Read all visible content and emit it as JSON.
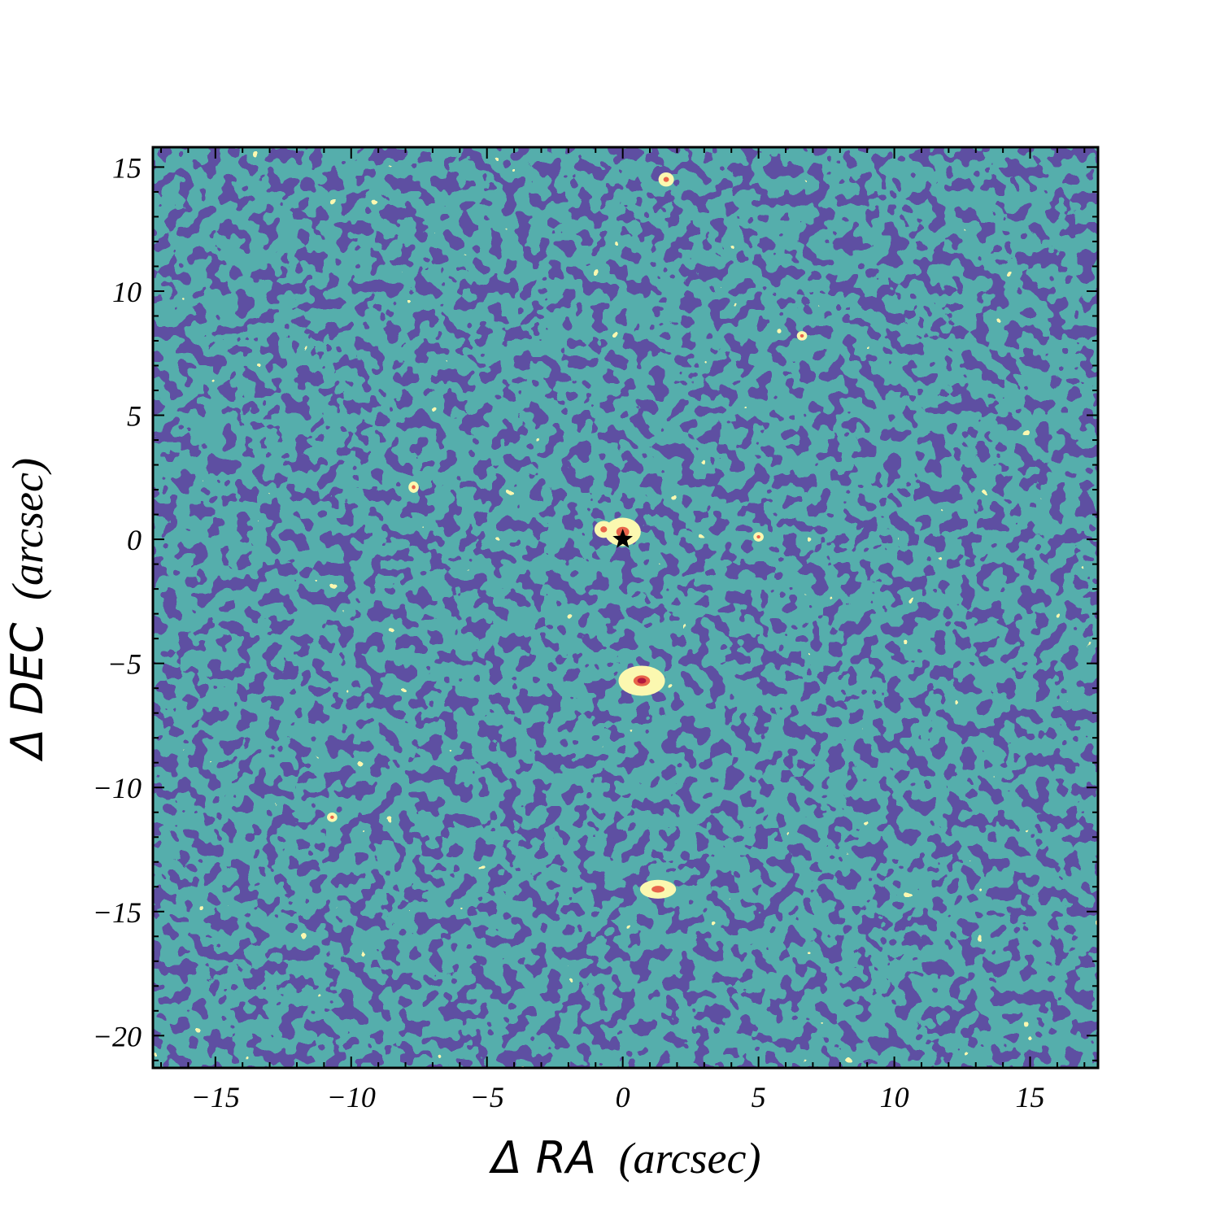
{
  "chart_data": {
    "type": "heatmap",
    "title": "",
    "xlabel": {
      "prefix": "Δ RA",
      "unit": "(arcsec)"
    },
    "ylabel": {
      "prefix": "Δ DEC",
      "unit": "(arcsec)"
    },
    "xlim": [
      -17.3,
      17.5
    ],
    "ylim": [
      -21.3,
      15.8
    ],
    "x_ticks": [
      -15,
      -10,
      -5,
      0,
      5,
      10,
      15
    ],
    "y_ticks": [
      15,
      10,
      5,
      0,
      -5,
      -10,
      -15,
      -20
    ],
    "x_tick_labels": [
      "−15",
      "−10",
      "−5",
      "0",
      "5",
      "10",
      "15"
    ],
    "y_tick_labels": [
      "15",
      "10",
      "5",
      "0",
      "−5",
      "−10",
      "−15",
      "−20"
    ],
    "minor_tick_step": 1,
    "grid": false,
    "colormap": "Spectral_r",
    "contour_level_colors": [
      "#5e4fa2",
      "#54aeac",
      "#fbf8b0",
      "#e8644b",
      "#b2183c"
    ],
    "sources": [
      {
        "x": 0.0,
        "y": 0.3,
        "level": 3,
        "rx": 0.35,
        "ry": 0.3
      },
      {
        "x": -0.7,
        "y": 0.4,
        "level": 3,
        "rx": 0.18,
        "ry": 0.18
      },
      {
        "x": 0.7,
        "y": -5.7,
        "level": 4,
        "rx": 0.45,
        "ry": 0.32
      },
      {
        "x": 1.3,
        "y": -14.1,
        "level": 3,
        "rx": 0.35,
        "ry": 0.2
      },
      {
        "x": 1.6,
        "y": 14.5,
        "level": 3,
        "rx": 0.15,
        "ry": 0.15
      },
      {
        "x": 5.0,
        "y": 0.1,
        "level": 3,
        "rx": 0.1,
        "ry": 0.1
      },
      {
        "x": -7.7,
        "y": 2.1,
        "level": 3,
        "rx": 0.1,
        "ry": 0.12
      },
      {
        "x": -10.7,
        "y": -11.2,
        "level": 3,
        "rx": 0.1,
        "ry": 0.1
      },
      {
        "x": 6.6,
        "y": 8.2,
        "level": 3,
        "rx": 0.1,
        "ry": 0.1
      }
    ],
    "marker": {
      "symbol": "star",
      "x": 0,
      "y": 0,
      "color": "#000000"
    }
  }
}
